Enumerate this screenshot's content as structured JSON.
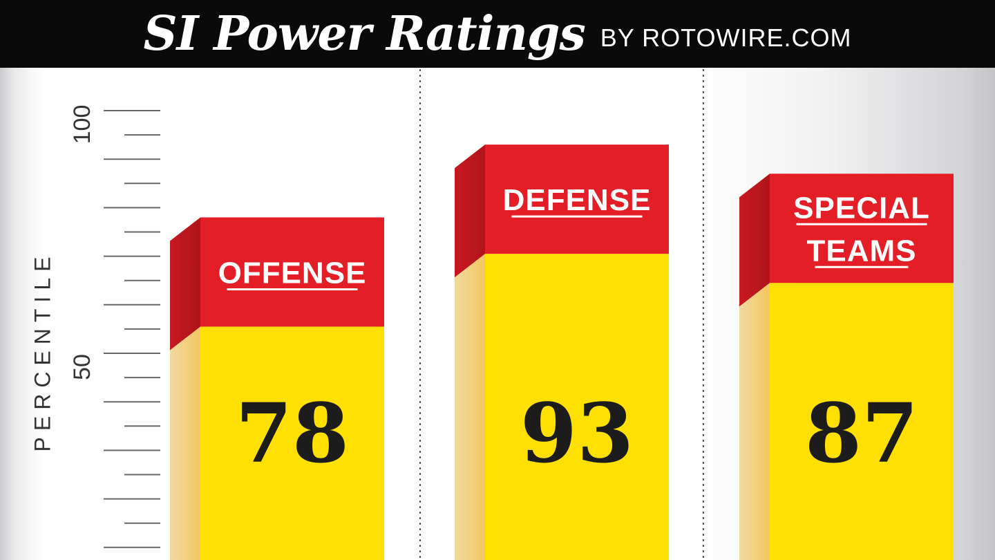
{
  "header": {
    "title": "SI Power Ratings",
    "byline": "BY ROTOWIRE.COM"
  },
  "chart_data": {
    "type": "bar",
    "title": "SI Power Ratings",
    "subtitle": "BY ROTOWIRE.COM",
    "xlabel": "",
    "ylabel": "PERCENTILE",
    "ylim": [
      0,
      100
    ],
    "yticks": [
      "50",
      "100"
    ],
    "categories": [
      [
        "OFFENSE"
      ],
      [
        "DEFENSE"
      ],
      [
        "SPECIAL",
        "TEAMS"
      ]
    ],
    "category_labels": [
      "OFFENSE",
      "DEFENSE",
      "SPECIAL TEAMS"
    ],
    "values": [
      78,
      93,
      87
    ],
    "value_labels": [
      "78",
      "93",
      "87"
    ],
    "colors": {
      "bar_fill": "#ffe000",
      "bar_side": "#f4c860",
      "cap_fill": "#e41e26",
      "cap_side": "#b0141b",
      "value_text": "#1c1c1c",
      "cap_text": "#ffffff"
    },
    "grid": false,
    "legend": "none"
  }
}
